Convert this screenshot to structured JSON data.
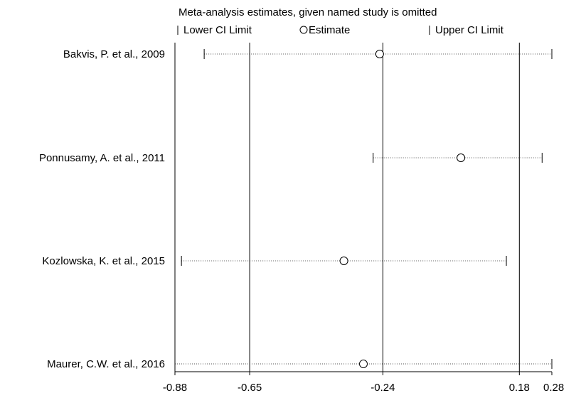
{
  "chart_data": {
    "type": "forest",
    "title": "Meta-analysis estimates, given named study is omitted",
    "legend": {
      "lower": "Lower CI Limit",
      "estimate": "Estimate",
      "upper": "Upper CI Limit"
    },
    "xlim": [
      -0.88,
      0.28
    ],
    "xticks": [
      {
        "value": -0.88,
        "label": "-0.88"
      },
      {
        "value": -0.65,
        "label": "-0.65"
      },
      {
        "value": -0.24,
        "label": "-0.24"
      },
      {
        "value": 0.18,
        "label": "0.18"
      },
      {
        "value": 0.28,
        "label": "0.28"
      }
    ],
    "reference_lines": [
      -0.65,
      -0.24,
      0.18
    ],
    "studies": [
      {
        "name": "Bakvis, P. et al., 2009",
        "lower": -0.79,
        "estimate": -0.25,
        "upper": 0.28
      },
      {
        "name": "Ponnusamy, A. et al., 2011",
        "lower": -0.27,
        "estimate": -0.0,
        "upper": 0.25
      },
      {
        "name": "Kozlowska, K. et al., 2015",
        "lower": -0.86,
        "estimate": -0.36,
        "upper": 0.14
      },
      {
        "name": "Maurer, C.W. et al., 2016",
        "lower": -0.88,
        "estimate": -0.3,
        "upper": 0.28
      }
    ]
  }
}
